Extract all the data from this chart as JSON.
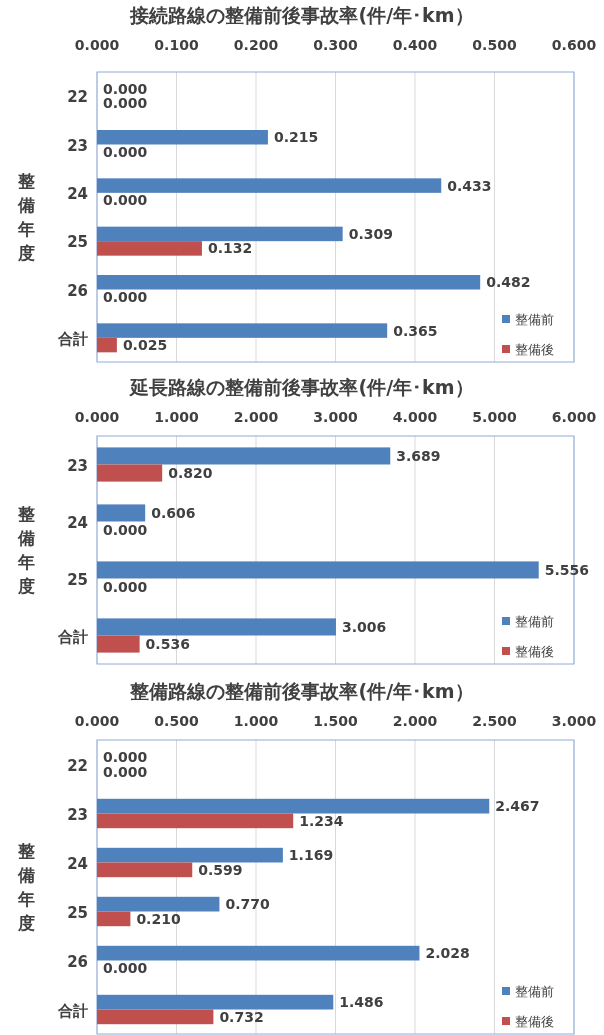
{
  "chart_data": [
    {
      "type": "bar",
      "orientation": "horizontal",
      "title": "接続路線の整備前後事故率(件/年･km）",
      "ylabel": "整備年度",
      "categories": [
        "22",
        "23",
        "24",
        "25",
        "26",
        "合計"
      ],
      "series": [
        {
          "name": "整備前",
          "color": "#4f81bd",
          "values": [
            0,
            0.215,
            0.433,
            0.309,
            0.482,
            0.365
          ],
          "value_labels": [
            "0.000",
            "0.215",
            "0.433",
            "0.309",
            "0.482",
            "0.365"
          ]
        },
        {
          "name": "整備後",
          "color": "#c0504d",
          "values": [
            0,
            0,
            0,
            0.132,
            0,
            0.025
          ],
          "value_labels": [
            "0.000",
            "0.000",
            "0.000",
            "0.132",
            "0.000",
            "0.025"
          ]
        }
      ],
      "xlim": [
        0,
        0.6
      ],
      "xticks": [
        {
          "value": 0,
          "label": "0.000"
        },
        {
          "value": 0.1,
          "label": "0.100"
        },
        {
          "value": 0.2,
          "label": "0.200"
        },
        {
          "value": 0.3,
          "label": "0.300"
        },
        {
          "value": 0.4,
          "label": "0.400"
        },
        {
          "value": 0.5,
          "label": "0.500"
        },
        {
          "value": 0.6,
          "label": "0.600"
        }
      ],
      "grid": "x",
      "legend": "bottom right"
    },
    {
      "type": "bar",
      "orientation": "horizontal",
      "title": "延長路線の整備前後事故率(件/年･km）",
      "ylabel": "整備年度",
      "categories": [
        "23",
        "24",
        "25",
        "合計"
      ],
      "series": [
        {
          "name": "整備前",
          "color": "#4f81bd",
          "values": [
            3.689,
            0.606,
            5.556,
            3.006
          ],
          "value_labels": [
            "3.689",
            "0.606",
            "5.556",
            "3.006"
          ]
        },
        {
          "name": "整備後",
          "color": "#c0504d",
          "values": [
            0.82,
            0,
            0,
            0.536
          ],
          "value_labels": [
            "0.820",
            "0.000",
            "0.000",
            "0.536"
          ]
        }
      ],
      "xlim": [
        0,
        6
      ],
      "xticks": [
        {
          "value": 0,
          "label": "0.000"
        },
        {
          "value": 1,
          "label": "1.000"
        },
        {
          "value": 2,
          "label": "2.000"
        },
        {
          "value": 3,
          "label": "3.000"
        },
        {
          "value": 4,
          "label": "4.000"
        },
        {
          "value": 5,
          "label": "5.000"
        },
        {
          "value": 6,
          "label": "6.000"
        }
      ],
      "grid": "x",
      "legend": "bottom right"
    },
    {
      "type": "bar",
      "orientation": "horizontal",
      "title": "整備路線の整備前後事故率(件/年･km）",
      "ylabel": "整備年度",
      "categories": [
        "22",
        "23",
        "24",
        "25",
        "26",
        "合計"
      ],
      "series": [
        {
          "name": "整備前",
          "color": "#4f81bd",
          "values": [
            0,
            2.467,
            1.169,
            0.77,
            2.028,
            1.486
          ],
          "value_labels": [
            "0.000",
            "2.467",
            "1.169",
            "0.770",
            "2.028",
            "1.486"
          ]
        },
        {
          "name": "整備後",
          "color": "#c0504d",
          "values": [
            0,
            1.234,
            0.599,
            0.21,
            0,
            0.732
          ],
          "value_labels": [
            "0.000",
            "1.234",
            "0.599",
            "0.210",
            "0.000",
            "0.732"
          ]
        }
      ],
      "xlim": [
        0,
        3
      ],
      "xticks": [
        {
          "value": 0,
          "label": "0.000"
        },
        {
          "value": 0.5,
          "label": "0.500"
        },
        {
          "value": 1,
          "label": "1.000"
        },
        {
          "value": 1.5,
          "label": "1.500"
        },
        {
          "value": 2,
          "label": "2.000"
        },
        {
          "value": 2.5,
          "label": "2.500"
        },
        {
          "value": 3,
          "label": "3.000"
        }
      ],
      "grid": "x",
      "legend": "bottom right"
    }
  ]
}
